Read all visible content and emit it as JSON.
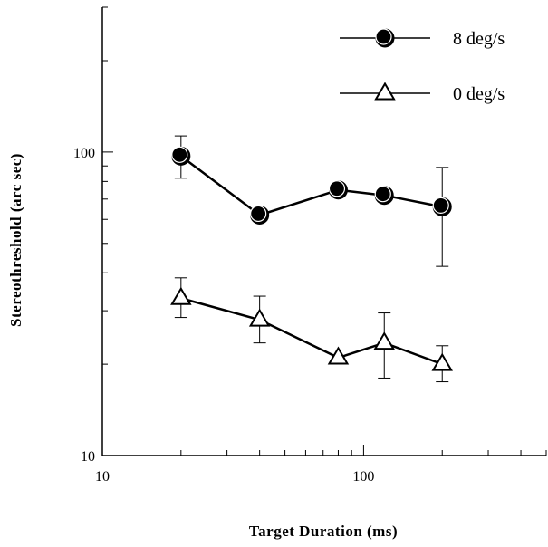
{
  "chart_data": {
    "type": "line",
    "title": "",
    "xlabel": "Target Duration  (ms)",
    "ylabel": "Stereothreshold  (arc  sec)",
    "xscale": "log",
    "yscale": "log",
    "xlim": [
      10,
      500
    ],
    "ylim": [
      10,
      300
    ],
    "x_tick_labels": [
      "10",
      "100"
    ],
    "y_tick_labels": [
      "10",
      "100"
    ],
    "grid": false,
    "legend_position": "top-right",
    "series": [
      {
        "name": "8 deg/s",
        "marker": "filled-circle",
        "x": [
          20,
          40,
          80,
          120,
          200
        ],
        "y": [
          97,
          62,
          75,
          72,
          66
        ],
        "err_low": [
          82,
          62,
          75,
          72,
          42
        ],
        "err_high": [
          113,
          62,
          75,
          72,
          89
        ]
      },
      {
        "name": "0 deg/s",
        "marker": "open-triangle",
        "x": [
          20,
          40,
          80,
          120,
          200
        ],
        "y": [
          33,
          28,
          21,
          23.5,
          20
        ],
        "err_low": [
          28.5,
          23.5,
          21,
          18,
          17.5
        ],
        "err_high": [
          38.5,
          33.5,
          21,
          29.5,
          23
        ]
      }
    ],
    "colors": {
      "line": "#000000",
      "marker_fill_open": "#ffffff",
      "marker_fill_filled": "#000000"
    }
  }
}
